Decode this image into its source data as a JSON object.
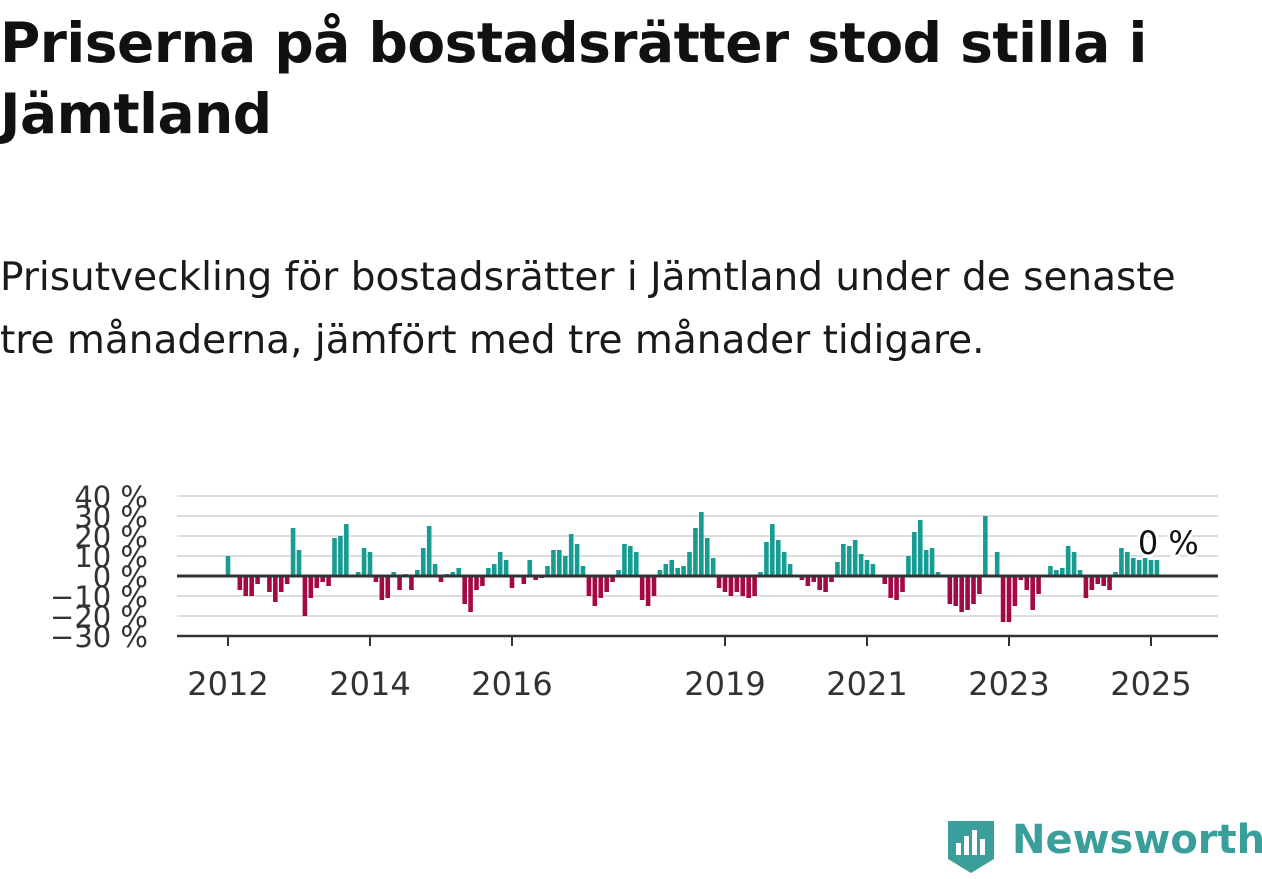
{
  "title": "Priserna på bostadsrätter stod stilla i Jämtland",
  "subtitle": "Prisutveckling för bostadsrätter i Jämtland under de senaste tre månaderna, jämfört med tre månader tidigare.",
  "brand": {
    "name": "Newsworthy",
    "icon": "newsworthy-logo-icon"
  },
  "colors": {
    "positive": "#169c93",
    "negative": "#a30a45",
    "grid": "#dddddd",
    "axis": "#333333",
    "brand": "#3a9f9a"
  },
  "chart_data": {
    "type": "bar",
    "ylim": [
      -30,
      40
    ],
    "yticks": [
      40,
      30,
      20,
      10,
      0,
      -10,
      -20,
      -30
    ],
    "ytick_labels": [
      "40 %",
      "30 %",
      "20 %",
      "10 %",
      "0 %",
      "−10 %",
      "−20 %",
      "−30 %"
    ],
    "xticks": [
      {
        "label": "2012",
        "year": 2012.0
      },
      {
        "label": "2014",
        "year": 2014.0
      },
      {
        "label": "2016",
        "year": 2016.0
      },
      {
        "label": "2019",
        "year": 2019.0
      },
      {
        "label": "2021",
        "year": 2021.0
      },
      {
        "label": "2023",
        "year": 2023.0
      },
      {
        "label": "2025",
        "year": 2025.0
      }
    ],
    "grid": true,
    "x_start": "2012-01",
    "x_end": "2025-03",
    "last_value_label": "0 %",
    "values": [
      10,
      0,
      -7,
      -10,
      -10,
      -4,
      0,
      -8,
      -13,
      -8,
      -4,
      24,
      13,
      -20,
      -11,
      -6,
      -3,
      -5,
      19,
      20,
      26,
      0,
      2,
      14,
      12,
      -3,
      -12,
      -11,
      2,
      -7,
      1,
      -7,
      3,
      14,
      25,
      6,
      -3,
      1,
      2,
      4,
      -14,
      -18,
      -7,
      -5,
      4,
      6,
      12,
      8,
      -6,
      0,
      -4,
      8,
      -2,
      -1,
      5,
      13,
      13,
      10,
      21,
      16,
      5,
      -10,
      -15,
      -11,
      -8,
      -3,
      3,
      16,
      15,
      12,
      -12,
      -15,
      -10,
      3,
      6,
      8,
      4,
      5,
      12,
      24,
      32,
      19,
      9,
      -6,
      -8,
      -10,
      -8,
      -10,
      -11,
      -10,
      2,
      17,
      26,
      18,
      12,
      6,
      0,
      -2,
      -5,
      -3,
      -7,
      -8,
      -3,
      7,
      16,
      15,
      18,
      11,
      8,
      6,
      0,
      -4,
      -11,
      -12,
      -8,
      10,
      22,
      28,
      13,
      14,
      2,
      0,
      -14,
      -15,
      -18,
      -17,
      -14,
      -9,
      30,
      0,
      12,
      -23,
      -23,
      -15,
      -2,
      -7,
      -17,
      -9,
      0,
      5,
      3,
      4,
      15,
      12,
      3,
      -11,
      -7,
      -4,
      -5,
      -7,
      2,
      14,
      12,
      9,
      8,
      9,
      8,
      8,
      0
    ]
  }
}
